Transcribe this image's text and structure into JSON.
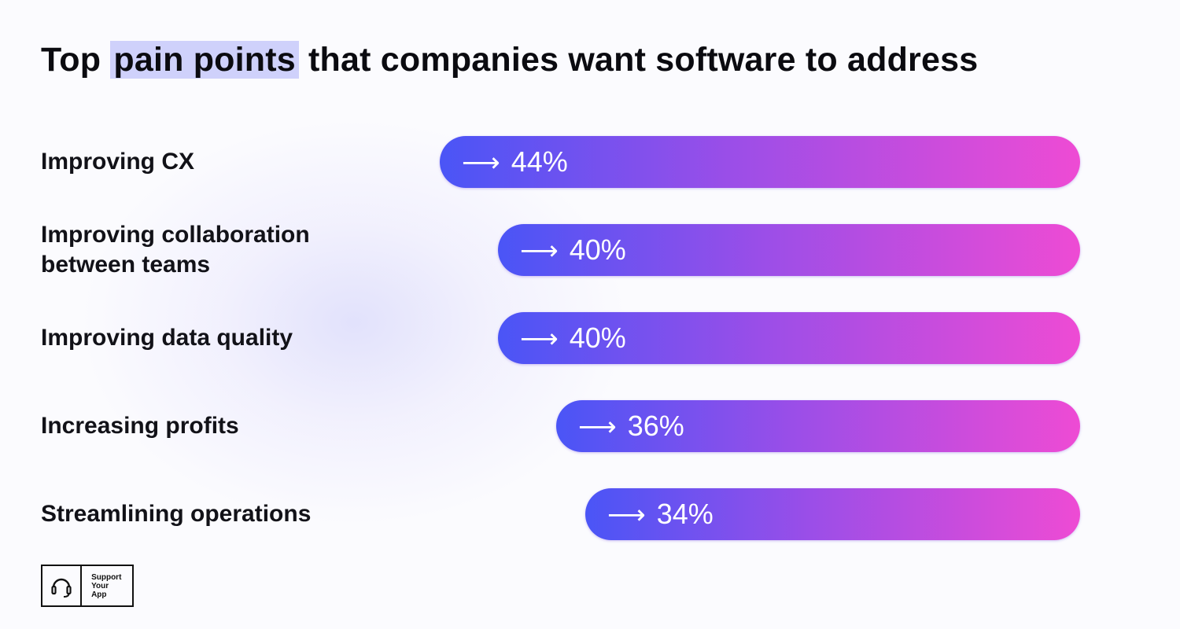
{
  "chart_data": {
    "type": "bar",
    "title": {
      "before": "Top ",
      "highlight": "pain points",
      "after": " that companies want software to address"
    },
    "categories": [
      "Improving CX",
      "Improving collaboration between teams",
      "Improving data quality",
      "Increasing profits",
      "Streamlining operations"
    ],
    "values": [
      44,
      40,
      40,
      36,
      34
    ],
    "value_labels": [
      "44%",
      "40%",
      "40%",
      "36%",
      "34%"
    ],
    "orientation": "horizontal",
    "bar_alignment": "right",
    "xlim": [
      0,
      100
    ],
    "grid": false,
    "legend": "none",
    "colors": {
      "bar_start": "#4a55f6",
      "bar_mid": "#9a4ee8",
      "bar_end": "#ee4bd4",
      "highlight": "#cfd1fb"
    }
  },
  "brand": {
    "icon": "headset-icon",
    "lines": [
      "Support",
      "Your",
      "App"
    ]
  }
}
